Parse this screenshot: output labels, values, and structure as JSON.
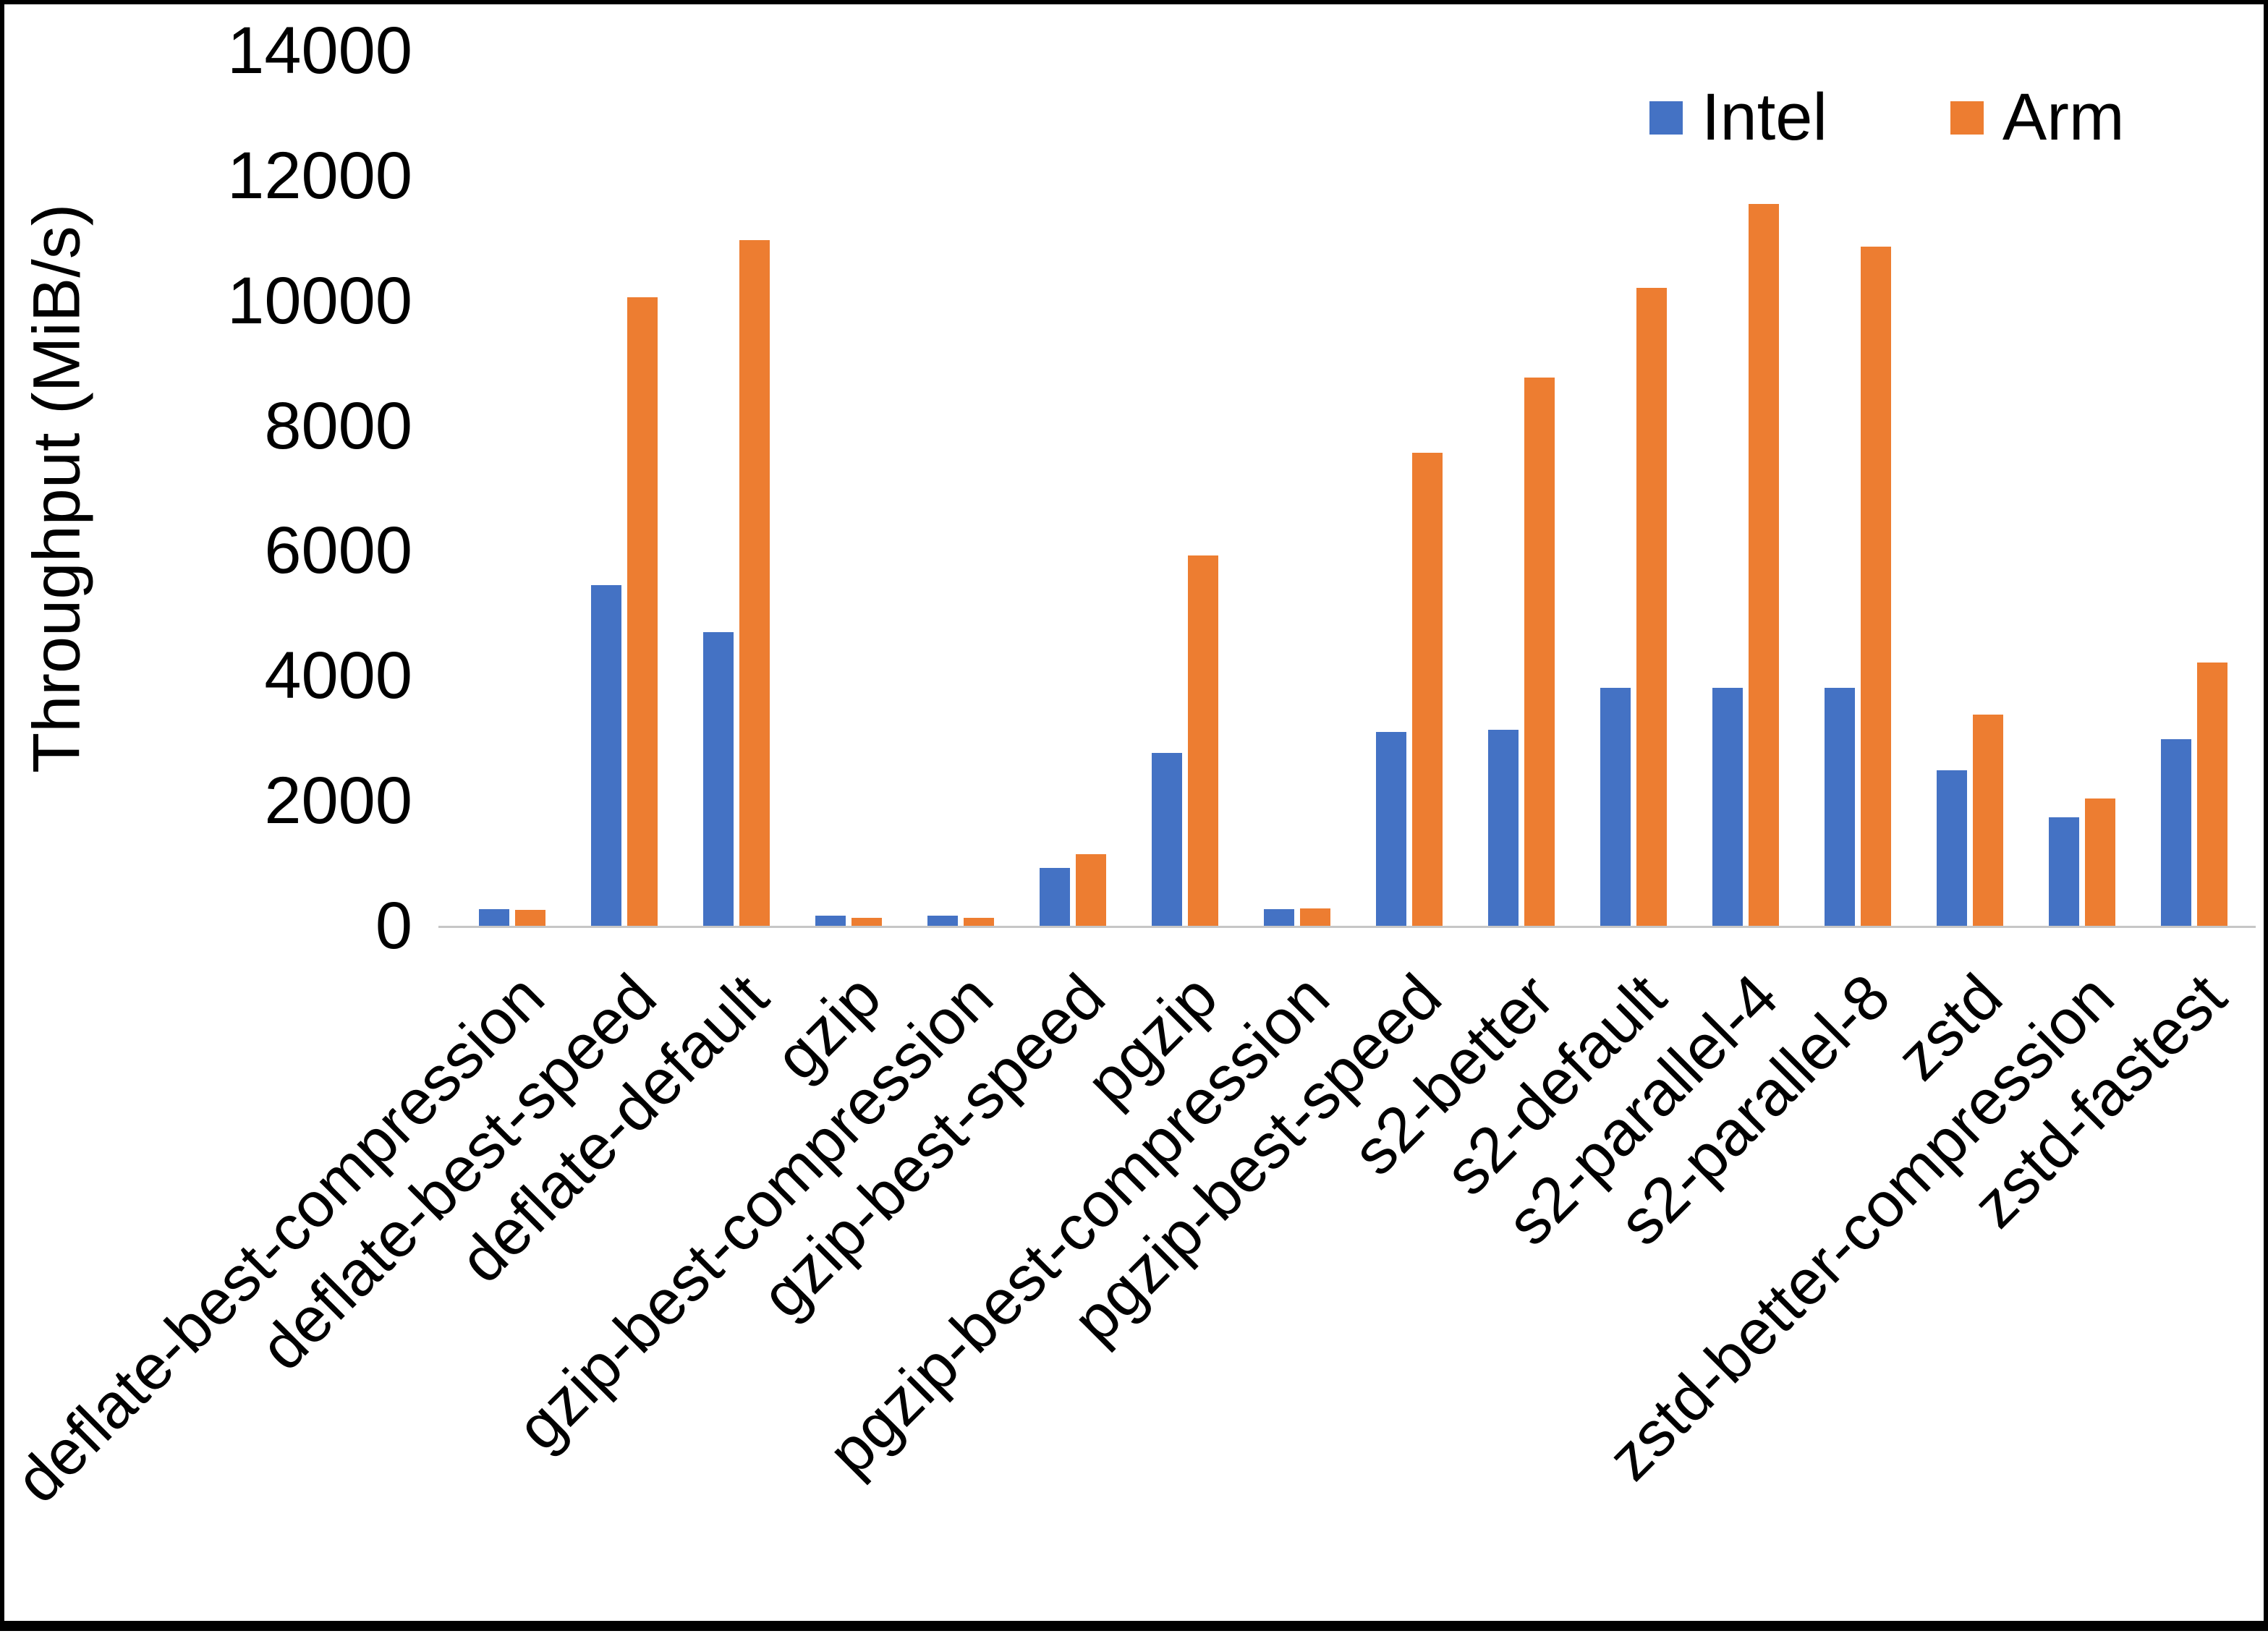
{
  "chart_data": {
    "type": "bar",
    "title": "",
    "xlabel": "",
    "ylabel": "Throughput (MiB/s)",
    "ylim": [
      0,
      14000
    ],
    "yticks": [
      0,
      2000,
      4000,
      6000,
      8000,
      10000,
      12000,
      14000
    ],
    "grid": false,
    "legend_position": "top-right",
    "categories": [
      "deflate-best-compression",
      "deflate-best-speed",
      "deflate-default",
      "gzip",
      "gzip-best-compression",
      "gzip-best-speed",
      "pgzip",
      "pgzip-best-compression",
      "pgzip-best-speed",
      "s2-better",
      "s2-default",
      "s2-parallel-4",
      "s2-parallel-8",
      "zstd",
      "zstd-better-compression",
      "zstd-fastest"
    ],
    "series": [
      {
        "name": "Intel",
        "color": "#4472C4",
        "values": [
          270,
          5450,
          4700,
          160,
          160,
          920,
          2770,
          270,
          3100,
          3130,
          3810,
          3810,
          3810,
          2490,
          1740,
          2980
        ]
      },
      {
        "name": "Arm",
        "color": "#ED7D31",
        "values": [
          260,
          10050,
          10970,
          130,
          130,
          1150,
          5920,
          280,
          7570,
          8770,
          10200,
          11550,
          10870,
          3380,
          2040,
          4210
        ]
      }
    ]
  },
  "frame": {
    "border_color": "#000000",
    "background_color": "#ffffff",
    "axis_line_color": "#c6c6c6"
  }
}
